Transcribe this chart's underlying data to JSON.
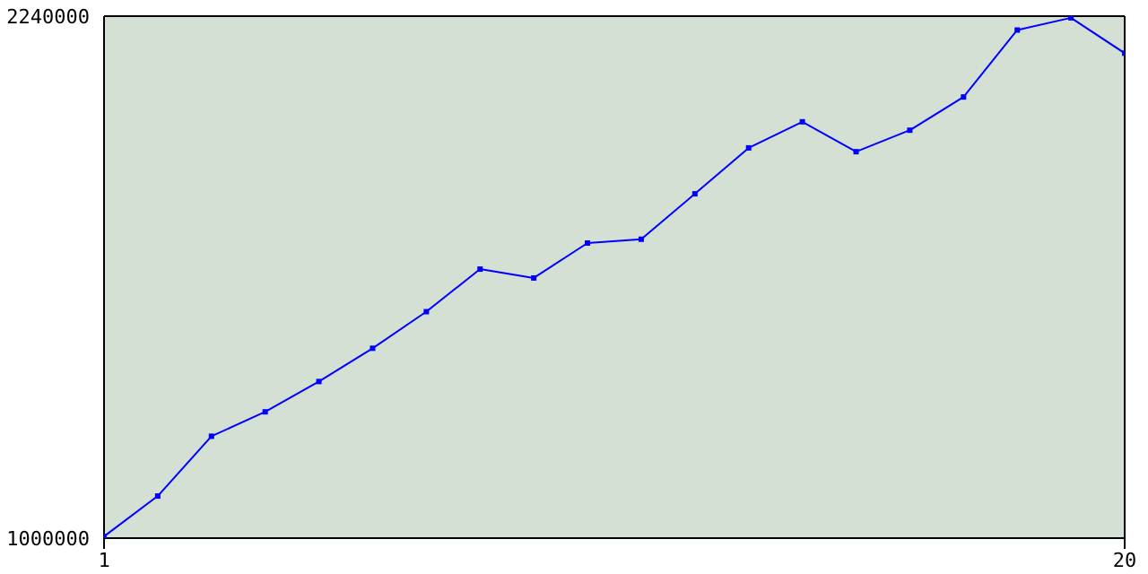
{
  "chart_data": {
    "type": "line",
    "x": [
      1,
      2,
      3,
      4,
      5,
      6,
      7,
      8,
      9,
      10,
      11,
      12,
      13,
      14,
      15,
      16,
      17,
      18,
      19,
      20
    ],
    "values": [
      1004000,
      1100000,
      1242000,
      1300000,
      1372000,
      1451000,
      1538000,
      1639000,
      1618000,
      1701000,
      1710000,
      1818000,
      1927000,
      1989000,
      1918000,
      1969000,
      2048000,
      2207000,
      2236000,
      2152000
    ],
    "color": "#0000ff",
    "xlim": [
      1,
      20
    ],
    "xticks": [
      1,
      20
    ],
    "ylim": [
      1000000,
      2240000
    ],
    "yticks": [
      1000000,
      2240000
    ],
    "marker": "square",
    "line_style": "solid"
  }
}
